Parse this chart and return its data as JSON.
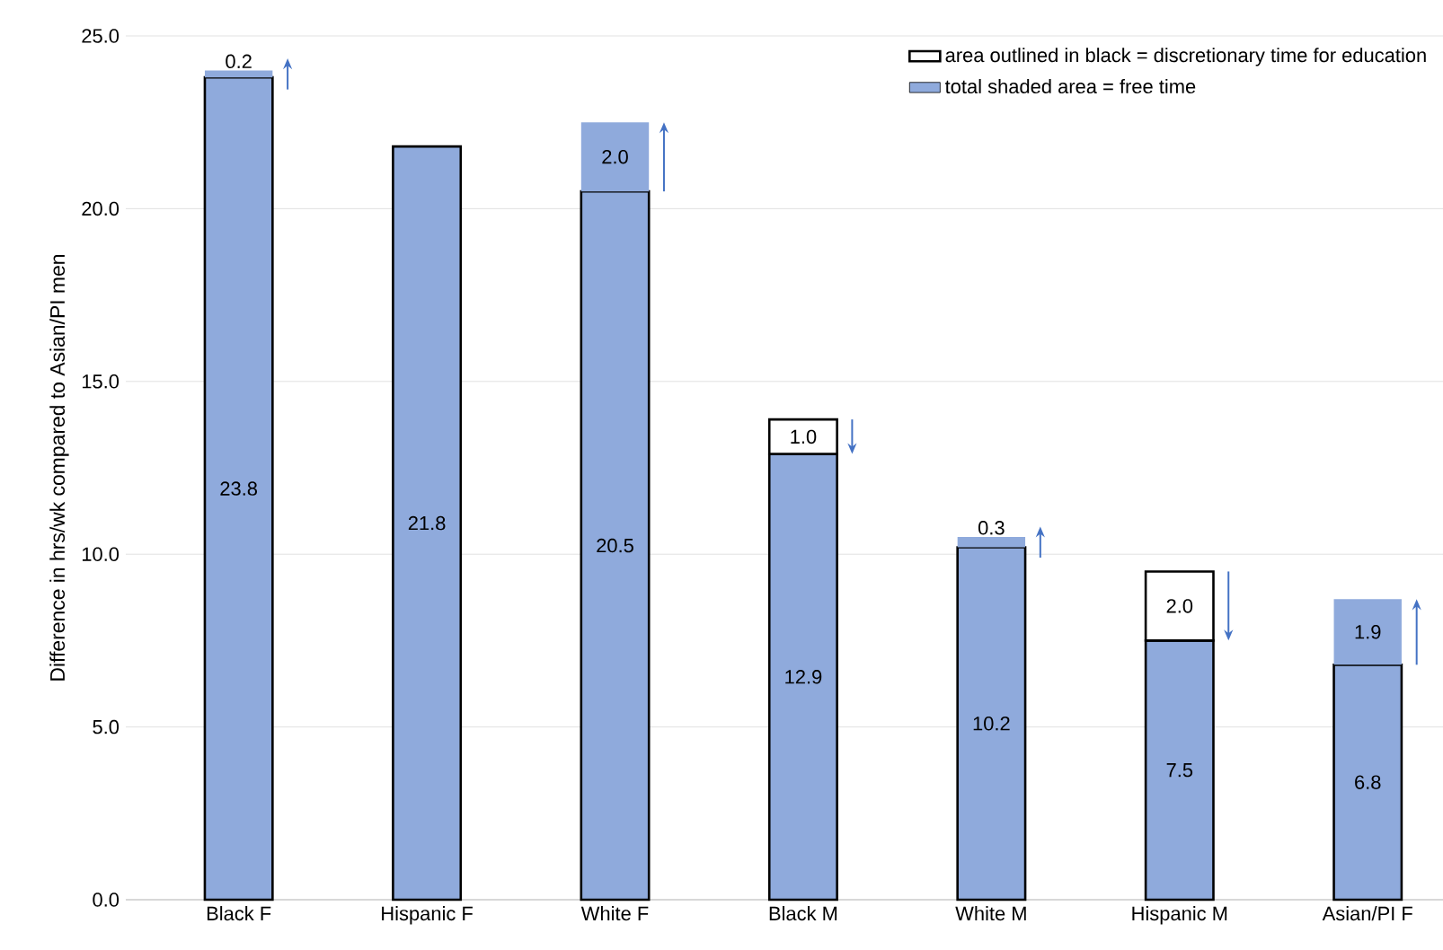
{
  "chart_data": {
    "type": "bar",
    "stacked": true,
    "ylabel": "Difference in hrs/wk compared to Asian/PI men",
    "categories": [
      "Black F",
      "Hispanic F",
      "White F",
      "Black M",
      "White M",
      "Hispanic M",
      "Asian/PI F"
    ],
    "series": [
      {
        "color": "#8faadc",
        "values": [
          23.8,
          21.8,
          20.5,
          12.9,
          10.2,
          7.5,
          6.8
        ],
        "value_labels": [
          "23.8",
          "21.8",
          "20.5",
          "12.9",
          "10.2",
          "7.5",
          "6.8"
        ]
      },
      {
        "name": "area outlined in black = discretionary time for education",
        "color": "#ffffff",
        "values": [
          null,
          null,
          null,
          1.0,
          null,
          2.0,
          null
        ],
        "value_labels": [
          null,
          null,
          null,
          "1.0",
          null,
          "2.0",
          null
        ]
      },
      {
        "name": "total shaded area = free time",
        "color": "#8faadc",
        "values": [
          0.2,
          null,
          2.0,
          null,
          0.3,
          null,
          1.9
        ],
        "value_labels": [
          "0.2",
          null,
          "2.0",
          null,
          "0.3",
          null,
          "1.9"
        ]
      }
    ],
    "ylim": [
      0,
      25
    ],
    "yticks": [
      {
        "value": 0,
        "label": "0.0"
      },
      {
        "value": 5,
        "label": "5.0"
      },
      {
        "value": 10,
        "label": "10.0"
      },
      {
        "value": 15,
        "label": "15.0"
      },
      {
        "value": 20,
        "label": "20.0"
      },
      {
        "value": 25,
        "label": "25.0"
      }
    ],
    "grid": "y",
    "legend": "top right"
  }
}
